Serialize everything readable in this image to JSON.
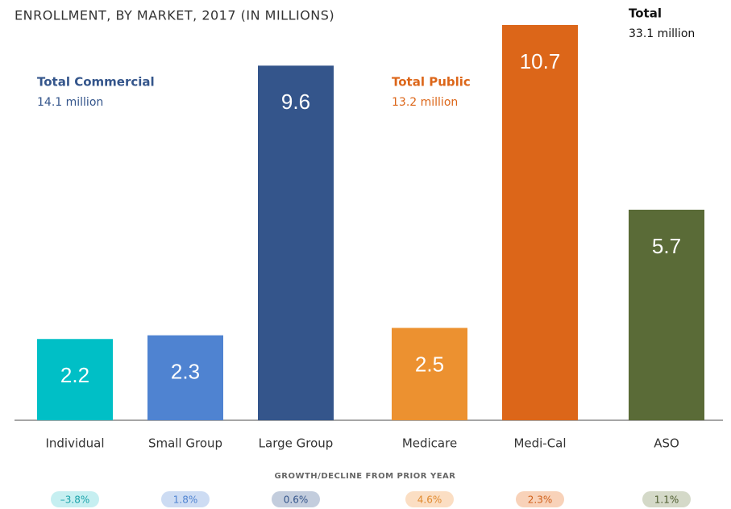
{
  "chart_data": {
    "type": "bar",
    "title": "ENROLLMENT, BY MARKET, 2017 (IN MILLIONS)",
    "categories": [
      "Individual",
      "Small Group",
      "Large Group",
      "Medicare",
      "Medi-Cal",
      "ASO"
    ],
    "values": [
      2.2,
      2.3,
      9.6,
      2.5,
      10.7,
      5.7
    ],
    "colors": [
      "#00bfc6",
      "#4f83d1",
      "#34558b",
      "#ec9130",
      "#dc6619",
      "#5a6b37"
    ],
    "annotations": [
      {
        "title": "Total Commercial",
        "text": "14.1 million",
        "color": "#34558b"
      },
      {
        "title": "Total Public",
        "text": "13.2 million",
        "color": "#dc6619"
      },
      {
        "title": "Total",
        "text": "33.1 million",
        "color": "#111111"
      }
    ],
    "growth": {
      "title": "GROWTH/DECLINE FROM PRIOR YEAR",
      "values": [
        -3.8,
        1.8,
        0.6,
        4.6,
        2.3,
        1.1
      ],
      "value_labels": [
        "–3.8%",
        "1.8%",
        "0.6%",
        "4.6%",
        "2.3%",
        "1.1%"
      ],
      "colors": [
        "#c6eff1",
        "#cddcf3",
        "#c3cddd",
        "#fbdec3",
        "#f8d2b9",
        "#d4d9c8"
      ],
      "text_colors": [
        "#1aa3aa",
        "#4f83d1",
        "#34558b",
        "#e08a2e",
        "#d0601a",
        "#4d5c2e"
      ]
    }
  }
}
